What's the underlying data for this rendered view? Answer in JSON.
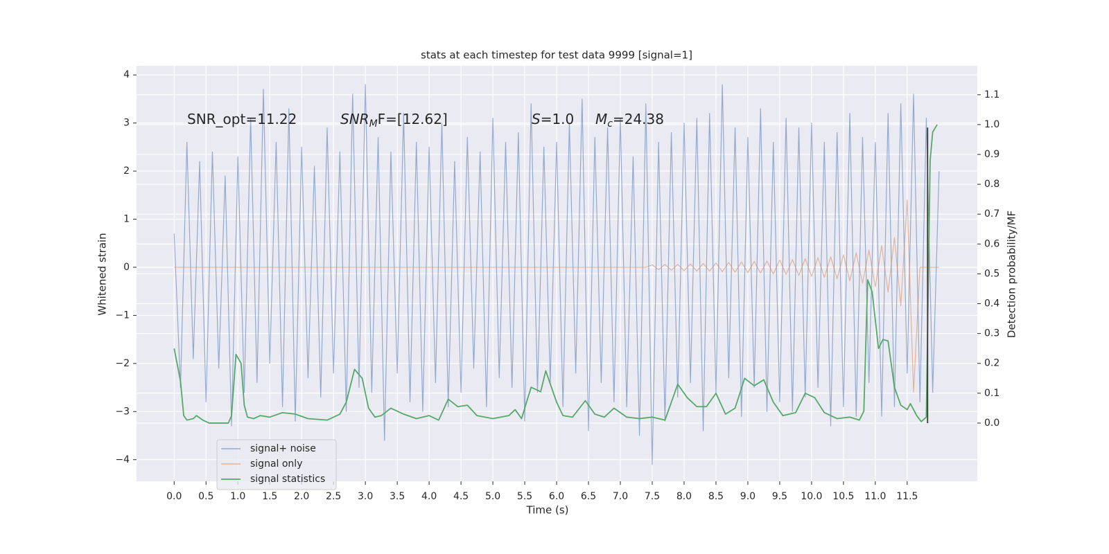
{
  "chart_data": {
    "type": "line",
    "title": "stats at each timestep for test data 9999 [signal=1]",
    "xlabel": "Time (s)",
    "ylabel": "Whitened strain",
    "y2label": "Detection probability/MF",
    "xlim": [
      -0.59,
      12.6
    ],
    "ylim": [
      -4.45,
      4.19
    ],
    "y2lim": [
      -0.195,
      1.197
    ],
    "xticks": [
      {
        "value": 0,
        "label": "0.0"
      },
      0.5,
      {
        "value": 1,
        "label": "1.0"
      },
      1.5,
      {
        "value": 2,
        "label": "2.0"
      },
      2.5,
      {
        "value": 3,
        "label": "3.0"
      },
      3.5,
      {
        "value": 4,
        "label": "4.0"
      },
      4.5,
      {
        "value": 5,
        "label": "5.0"
      },
      5.5,
      {
        "value": 6,
        "label": "6.0"
      },
      6.5,
      {
        "value": 7,
        "label": "7.0"
      },
      7.5,
      {
        "value": 8,
        "label": "8.0"
      },
      8.5,
      {
        "value": 9,
        "label": "9.0"
      },
      9.5,
      {
        "value": 10,
        "label": "10.0"
      },
      10.5,
      {
        "value": 11,
        "label": "11.0"
      },
      11.5
    ],
    "yticks": [
      {
        "value": -4,
        "label": "−4"
      },
      {
        "value": -3,
        "label": "−3"
      },
      {
        "value": -2,
        "label": "−2"
      },
      {
        "value": -1,
        "label": "−1"
      },
      0,
      1,
      2,
      3,
      4
    ],
    "y2ticks": [
      {
        "value": 0,
        "label": "0.0"
      },
      0.1,
      0.2,
      0.3,
      0.4,
      0.5,
      0.6,
      0.7,
      0.8,
      0.9,
      {
        "value": 1,
        "label": "1.0"
      },
      1.1
    ],
    "grid": true,
    "legend": "lower left",
    "annotations": [
      {
        "text": "SNR_opt=11.22"
      },
      {
        "text": "SNR",
        "sub": "M",
        "after": "F=[12.62]",
        "style": "math"
      },
      {
        "text": "S",
        "after": "=1.0",
        "style": "math"
      },
      {
        "text": "M",
        "sub": "c",
        "after": "=24.38",
        "style": "math"
      }
    ],
    "x": [
      0,
      0.1,
      0.2,
      0.3,
      0.4,
      0.5,
      0.6,
      0.7,
      0.8,
      0.9,
      1,
      1.1,
      1.2,
      1.3,
      1.4,
      1.5,
      1.6,
      1.7,
      1.8,
      1.9,
      2,
      2.1,
      2.2,
      2.3,
      2.4,
      2.5,
      2.6,
      2.7,
      2.8,
      2.9,
      3,
      3.1,
      3.2,
      3.3,
      3.4,
      3.5,
      3.6,
      3.7,
      3.8,
      3.9,
      4,
      4.1,
      4.2,
      4.3,
      4.4,
      4.5,
      4.6,
      4.7,
      4.8,
      4.9,
      5,
      5.1,
      5.2,
      5.3,
      5.4,
      5.5,
      5.6,
      5.7,
      5.8,
      5.9,
      6,
      6.1,
      6.2,
      6.3,
      6.4,
      6.5,
      6.6,
      6.7,
      6.8,
      6.9,
      7,
      7.1,
      7.2,
      7.3,
      7.4,
      7.5,
      7.6,
      7.7,
      7.8,
      7.9,
      8,
      8.1,
      8.2,
      8.3,
      8.4,
      8.5,
      8.6,
      8.7,
      8.8,
      8.9,
      9,
      9.1,
      9.2,
      9.3,
      9.4,
      9.5,
      9.6,
      9.7,
      9.8,
      9.9,
      10,
      10.1,
      10.2,
      10.3,
      10.4,
      10.5,
      10.6,
      10.7,
      10.8,
      10.9,
      11,
      11.1,
      11.2,
      11.3,
      11.4,
      11.5,
      11.6,
      11.7,
      11.8,
      11.9,
      12
    ],
    "series": [
      {
        "name": "signal+ noise",
        "color": "#4c72b0",
        "values": [
          0.7,
          -2.5,
          2.6,
          -1.9,
          2.2,
          -2.8,
          2.4,
          -2.1,
          1.9,
          -3.3,
          2.3,
          -2.6,
          3.1,
          -2.4,
          3.7,
          -2.0,
          2.6,
          -2.9,
          3.3,
          -3.2,
          2.5,
          -2.3,
          2.1,
          -2.7,
          2.9,
          -2.2,
          2.4,
          -3.0,
          3.6,
          -2.5,
          3.8,
          -2.6,
          2.7,
          -3.6,
          2.4,
          -2.2,
          3.2,
          -2.8,
          2.6,
          -3.0,
          2.5,
          -2.4,
          3.0,
          -2.9,
          2.2,
          -2.6,
          2.7,
          -2.1,
          2.4,
          -2.9,
          3.1,
          -2.3,
          2.6,
          -2.5,
          2.8,
          -3.2,
          3.4,
          -2.6,
          2.5,
          -2.4,
          2.6,
          -2.9,
          3.0,
          -2.2,
          3.5,
          -3.4,
          2.7,
          -2.4,
          2.9,
          -2.8,
          3.1,
          -2.9,
          2.3,
          -3.5,
          3.4,
          -4.1,
          2.6,
          -3.2,
          2.8,
          -2.7,
          3.0,
          -2.4,
          3.1,
          -3.4,
          3.2,
          -2.6,
          3.8,
          -2.3,
          2.9,
          -3.1,
          2.7,
          -2.5,
          3.3,
          -3.0,
          2.6,
          -2.8,
          3.1,
          -3.0,
          2.9,
          -2.7,
          3.0,
          -2.5,
          2.6,
          -3.3,
          2.8,
          -2.9,
          3.2,
          -3.1,
          2.7,
          -2.4,
          2.6,
          -3.1,
          3.2,
          -2.9,
          3.4,
          -2.2,
          3.6,
          -2.8,
          3.1,
          -2.6,
          2.0
        ]
      },
      {
        "name": "signal only",
        "color": "#dd8452",
        "values": [
          0,
          0,
          0,
          0,
          0,
          0,
          0,
          0,
          0,
          0,
          0,
          0,
          0,
          0,
          0,
          0,
          0,
          0,
          0,
          0,
          0,
          0,
          0,
          0,
          0,
          0,
          0,
          0,
          0,
          0,
          0,
          0,
          0,
          0,
          0,
          0,
          0,
          0,
          0,
          0,
          0,
          0,
          0,
          0,
          0,
          0,
          0,
          0,
          0,
          0,
          0,
          0,
          0,
          0,
          0,
          0,
          0,
          0,
          0,
          0,
          0,
          0,
          0,
          0,
          0,
          0,
          0,
          0,
          0,
          0,
          0,
          0,
          0,
          0,
          0,
          0.05,
          -0.05,
          0.06,
          -0.06,
          0.06,
          -0.07,
          0.07,
          -0.08,
          0.08,
          -0.08,
          0.09,
          -0.09,
          0.1,
          -0.1,
          0.11,
          -0.11,
          0.12,
          -0.12,
          0.13,
          -0.14,
          0.15,
          -0.15,
          0.16,
          -0.17,
          0.18,
          -0.19,
          0.2,
          -0.21,
          0.22,
          -0.24,
          0.26,
          -0.28,
          0.3,
          -0.33,
          0.36,
          -0.4,
          0.45,
          -0.52,
          0.62,
          -0.8,
          1.4,
          -2.6,
          0,
          0,
          0,
          0
        ]
      },
      {
        "name": "signal statistics",
        "color": "#55a868",
        "axis": "y2",
        "x": [
          0,
          0.1,
          0.15,
          0.2,
          0.3,
          0.35,
          0.45,
          0.55,
          0.7,
          0.85,
          0.9,
          0.97,
          1.05,
          1.1,
          1.15,
          1.25,
          1.35,
          1.5,
          1.7,
          1.9,
          2.1,
          2.4,
          2.6,
          2.7,
          2.83,
          2.95,
          3.05,
          3.15,
          3.25,
          3.4,
          3.6,
          3.8,
          4,
          4.15,
          4.3,
          4.45,
          4.6,
          4.75,
          5,
          5.25,
          5.35,
          5.45,
          5.6,
          5.75,
          5.83,
          6,
          6.1,
          6.25,
          6.45,
          6.6,
          6.75,
          6.9,
          7.1,
          7.3,
          7.5,
          7.7,
          7.9,
          8.05,
          8.2,
          8.35,
          8.5,
          8.65,
          8.8,
          8.95,
          9.1,
          9.25,
          9.4,
          9.55,
          9.75,
          9.9,
          10.05,
          10.2,
          10.4,
          10.6,
          10.75,
          10.82,
          10.88,
          10.95,
          11.05,
          11.12,
          11.2,
          11.3,
          11.4,
          11.5,
          11.55,
          11.65,
          11.72,
          11.8,
          11.86,
          11.9,
          11.97
        ],
        "values": [
          0.25,
          0.14,
          0.025,
          0.01,
          0.015,
          0.025,
          0.01,
          0,
          0,
          0,
          0.025,
          0.23,
          0.2,
          0.06,
          0.02,
          0.015,
          0.025,
          0.02,
          0.035,
          0.03,
          0.015,
          0.01,
          0.03,
          0.07,
          0.18,
          0.15,
          0.05,
          0.02,
          0.025,
          0.05,
          0.03,
          0.015,
          0.025,
          0.01,
          0.08,
          0.055,
          0.06,
          0.025,
          0.015,
          0.025,
          0.045,
          0.015,
          0.12,
          0.105,
          0.175,
          0.07,
          0.025,
          0.02,
          0.075,
          0.03,
          0.02,
          0.05,
          0.02,
          0.015,
          0.02,
          0.01,
          0.13,
          0.085,
          0.055,
          0.055,
          0.1,
          0.03,
          0.05,
          0.15,
          0.125,
          0.145,
          0.07,
          0.025,
          0.035,
          0.1,
          0.085,
          0.035,
          0.015,
          0.02,
          0.01,
          0.04,
          0.48,
          0.44,
          0.25,
          0.28,
          0.275,
          0.12,
          0.06,
          0.045,
          0.065,
          0.025,
          0.005,
          0.02,
          0.88,
          0.975,
          1.0
        ]
      }
    ],
    "vline": {
      "x": 11.82,
      "ymin": 0,
      "ymax": 0.99,
      "color": "#3a3a3a"
    }
  }
}
